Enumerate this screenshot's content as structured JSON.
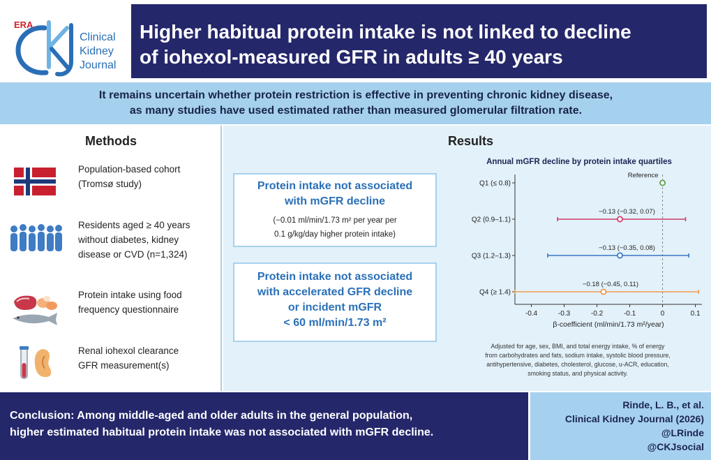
{
  "logo": {
    "era": "ERA",
    "journal_line1": "Clinical",
    "journal_line2": "Kidney",
    "journal_line3": "Journal"
  },
  "title": {
    "line1": "Higher habitual protein intake is not linked to decline",
    "line2": "of iohexol-measured GFR in adults ≥ 40 years"
  },
  "subtitle": {
    "line1": "It remains uncertain whether protein restriction is effective in preventing chronic kidney disease,",
    "line2": "as many studies have used estimated rather than measured glomerular filtration rate."
  },
  "methods": {
    "heading": "Methods",
    "items": [
      {
        "icon": "norway-flag-icon",
        "line1": "Population-based cohort",
        "line2": "(Tromsø study)",
        "line3": ""
      },
      {
        "icon": "people-group-icon",
        "line1": "Residents aged ≥ 40 years",
        "line2": "without diabetes, kidney",
        "line3": "disease or CVD (n=1,324)"
      },
      {
        "icon": "protein-foods-icon",
        "line1": "Protein intake using food",
        "line2": "frequency questionnaire",
        "line3": ""
      },
      {
        "icon": "kidney-test-tube-icon",
        "line1": "Renal iohexol clearance",
        "line2": "GFR measurement(s)",
        "line3": ""
      }
    ]
  },
  "results": {
    "heading": "Results",
    "finding1_head_line1": "Protein intake not associated",
    "finding1_head_line2": "with mGFR decline",
    "finding1_sub_line1": "(−0.01 ml/min/1.73 m² per year per",
    "finding1_sub_line2": "0.1 g/kg/day higher protein intake)",
    "finding2_line1": "Protein intake not associated",
    "finding2_line2": "with accelerated GFR decline",
    "finding2_line3": "or incident mGFR",
    "finding2_line4": "< 60 ml/min/1.73 m²"
  },
  "chart_data": {
    "type": "forest",
    "title": "Annual mGFR decline by protein intake quartiles",
    "xlabel": "β-coefficient (ml/min/1.73 m²/year)",
    "xlim": [
      -0.45,
      0.12
    ],
    "xticks": [
      -0.4,
      -0.3,
      -0.2,
      -0.1,
      0,
      0.1
    ],
    "xtick_labels": [
      "-0.4",
      "-0.3",
      "-0.2",
      "-0.1",
      "0",
      "0.1"
    ],
    "reference_line": 0,
    "rows": [
      {
        "label": "Q1 (≤ 0.8)",
        "estimate": 0,
        "lower": 0,
        "upper": 0,
        "text": "Reference",
        "color": "#5aa14a"
      },
      {
        "label": "Q2 (0.9–1.1)",
        "estimate": -0.13,
        "lower": -0.32,
        "upper": 0.07,
        "text": "−0.13 (−0.32, 0.07)",
        "color": "#d23c6a"
      },
      {
        "label": "Q3 (1.2–1.3)",
        "estimate": -0.13,
        "lower": -0.35,
        "upper": 0.08,
        "text": "−0.13 (−0.35, 0.08)",
        "color": "#3a78c2"
      },
      {
        "label": "Q4 (≥ 1.4)",
        "estimate": -0.18,
        "lower": -0.45,
        "upper": 0.11,
        "text": "−0.18 (−0.45, 0.11)",
        "color": "#ef9a4a"
      }
    ],
    "note_line1": "Adjusted for age, sex, BMI, and total energy intake, % of energy",
    "note_line2": "from carbohydrates and fats, sodium intake, systolic blood pressure,",
    "note_line3": "antihypertensive, diabetes, cholesterol, glucose, u-ACR, education,",
    "note_line4": "smoking status, and physical activity."
  },
  "conclusion": {
    "line1": "Conclusion: Among middle-aged and older adults in the general population,",
    "line2": "higher estimated habitual protein intake was not associated with mGFR decline."
  },
  "citation": {
    "line1": "Rinde, L. B., et al.",
    "line2": "Clinical Kidney Journal (2026)",
    "line3": "@LRinde",
    "line4": "@CKJsocial"
  },
  "colors": {
    "navy": "#25276b",
    "light_blue": "#a6d1ee",
    "accent_blue": "#2a70b8"
  }
}
